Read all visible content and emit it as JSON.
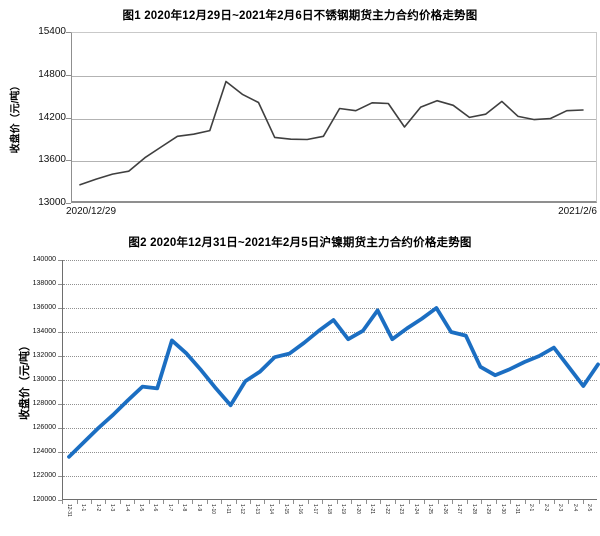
{
  "page": {
    "background": "#ffffff"
  },
  "chart_data": [
    {
      "type": "line",
      "title": "图1 2020年12月29日~2021年2月6日不锈钢期货主力合约价格走势图",
      "ylabel": "收盘价（元/吨）",
      "xlabel_left": "2020/12/29",
      "xlabel_right": "2021/2/6",
      "ylim": [
        13000,
        15400
      ],
      "yticks": [
        15400,
        14800,
        14200,
        13600,
        13000
      ],
      "grid": "solid",
      "legend": "none",
      "line_color": "#3f3f3f",
      "values": [
        13270,
        13350,
        13420,
        13460,
        13650,
        13800,
        13950,
        13980,
        14030,
        14720,
        14540,
        14425,
        13935,
        13910,
        13905,
        13950,
        14340,
        14310,
        14420,
        14410,
        14080,
        14360,
        14450,
        14385,
        14215,
        14260,
        14440,
        14230,
        14185,
        14200,
        14310,
        14320
      ]
    },
    {
      "type": "line",
      "title": "图2 2020年12月31日~2021年2月5日沪镍期货主力合约价格走势图",
      "ylabel": "收盘价（元/吨）",
      "ylim": [
        120000,
        140000
      ],
      "yticks": [
        140000,
        138000,
        136000,
        134000,
        132000,
        130000,
        128000,
        126000,
        124000,
        122000,
        120000
      ],
      "grid": "dotted",
      "legend": "none",
      "line_color": "#1b6ec2",
      "categories": [
        "12-31",
        "1-1",
        "1-2",
        "1-3",
        "1-4",
        "1-5",
        "1-6",
        "1-7",
        "1-8",
        "1-9",
        "1-10",
        "1-11",
        "1-12",
        "1-13",
        "1-14",
        "1-15",
        "1-16",
        "1-17",
        "1-18",
        "1-19",
        "1-20",
        "1-21",
        "1-22",
        "1-23",
        "1-24",
        "1-25",
        "1-26",
        "1-27",
        "1-28",
        "1-29",
        "1-30",
        "1-31",
        "2-1",
        "2-2",
        "2-3",
        "2-4",
        "2-5"
      ],
      "values": [
        123600,
        124800,
        126000,
        127100,
        128300,
        129450,
        129300,
        133300,
        132200,
        130800,
        129300,
        127900,
        129900,
        130700,
        131900,
        132200,
        133100,
        134100,
        135000,
        133400,
        134100,
        135800,
        133400,
        134300,
        135100,
        136000,
        134000,
        133700,
        131100,
        130400,
        130900,
        131500,
        132000,
        132700,
        131100,
        129500,
        131300
      ]
    }
  ]
}
